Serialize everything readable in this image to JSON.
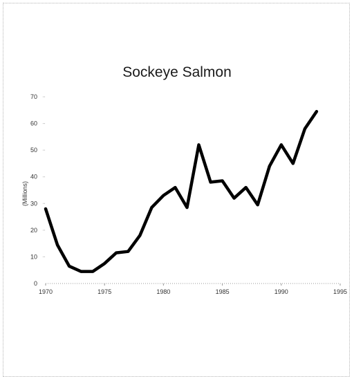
{
  "chart_data": {
    "type": "line",
    "title": "Sockeye Salmon",
    "xlabel": "",
    "ylabel": "(Millions)",
    "xlim": [
      1970,
      1995
    ],
    "ylim": [
      0,
      70
    ],
    "xticks": [
      1970,
      1975,
      1980,
      1985,
      1990,
      1995
    ],
    "yticks": [
      0,
      10,
      20,
      30,
      40,
      50,
      60,
      70
    ],
    "grid": false,
    "series": [
      {
        "x": [
          1970,
          1971,
          1972,
          1973,
          1974,
          1975,
          1976,
          1977,
          1978,
          1979,
          1980,
          1981,
          1982,
          1983,
          1984,
          1985,
          1986,
          1987,
          1988,
          1989,
          1990,
          1991,
          1992,
          1993
        ],
        "values": [
          28,
          14.5,
          6.5,
          4.5,
          4.5,
          7.5,
          11.5,
          12,
          18,
          28.5,
          33,
          36,
          28.5,
          52,
          38,
          38.5,
          32,
          36,
          29.5,
          44,
          52,
          45,
          58,
          64.5
        ],
        "color": "#000000"
      }
    ]
  }
}
